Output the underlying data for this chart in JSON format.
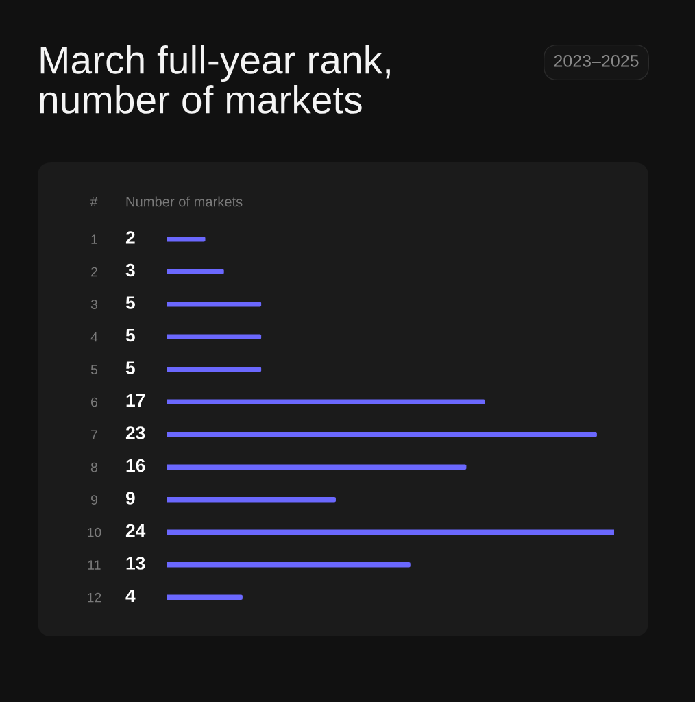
{
  "chart_data": {
    "type": "bar",
    "orientation": "horizontal",
    "title": "March full-year rank,\nnumber of markets",
    "subtitle": "2023–2025",
    "ylabel": "#",
    "xlabel": "Number of markets",
    "categories": [
      "1",
      "2",
      "3",
      "4",
      "5",
      "6",
      "7",
      "8",
      "9",
      "10",
      "11",
      "12"
    ],
    "values": [
      2,
      3,
      5,
      5,
      5,
      17,
      23,
      16,
      9,
      24,
      13,
      4
    ],
    "color": "#6b68fe",
    "data_labels": true,
    "tick_labels": "y"
  }
}
